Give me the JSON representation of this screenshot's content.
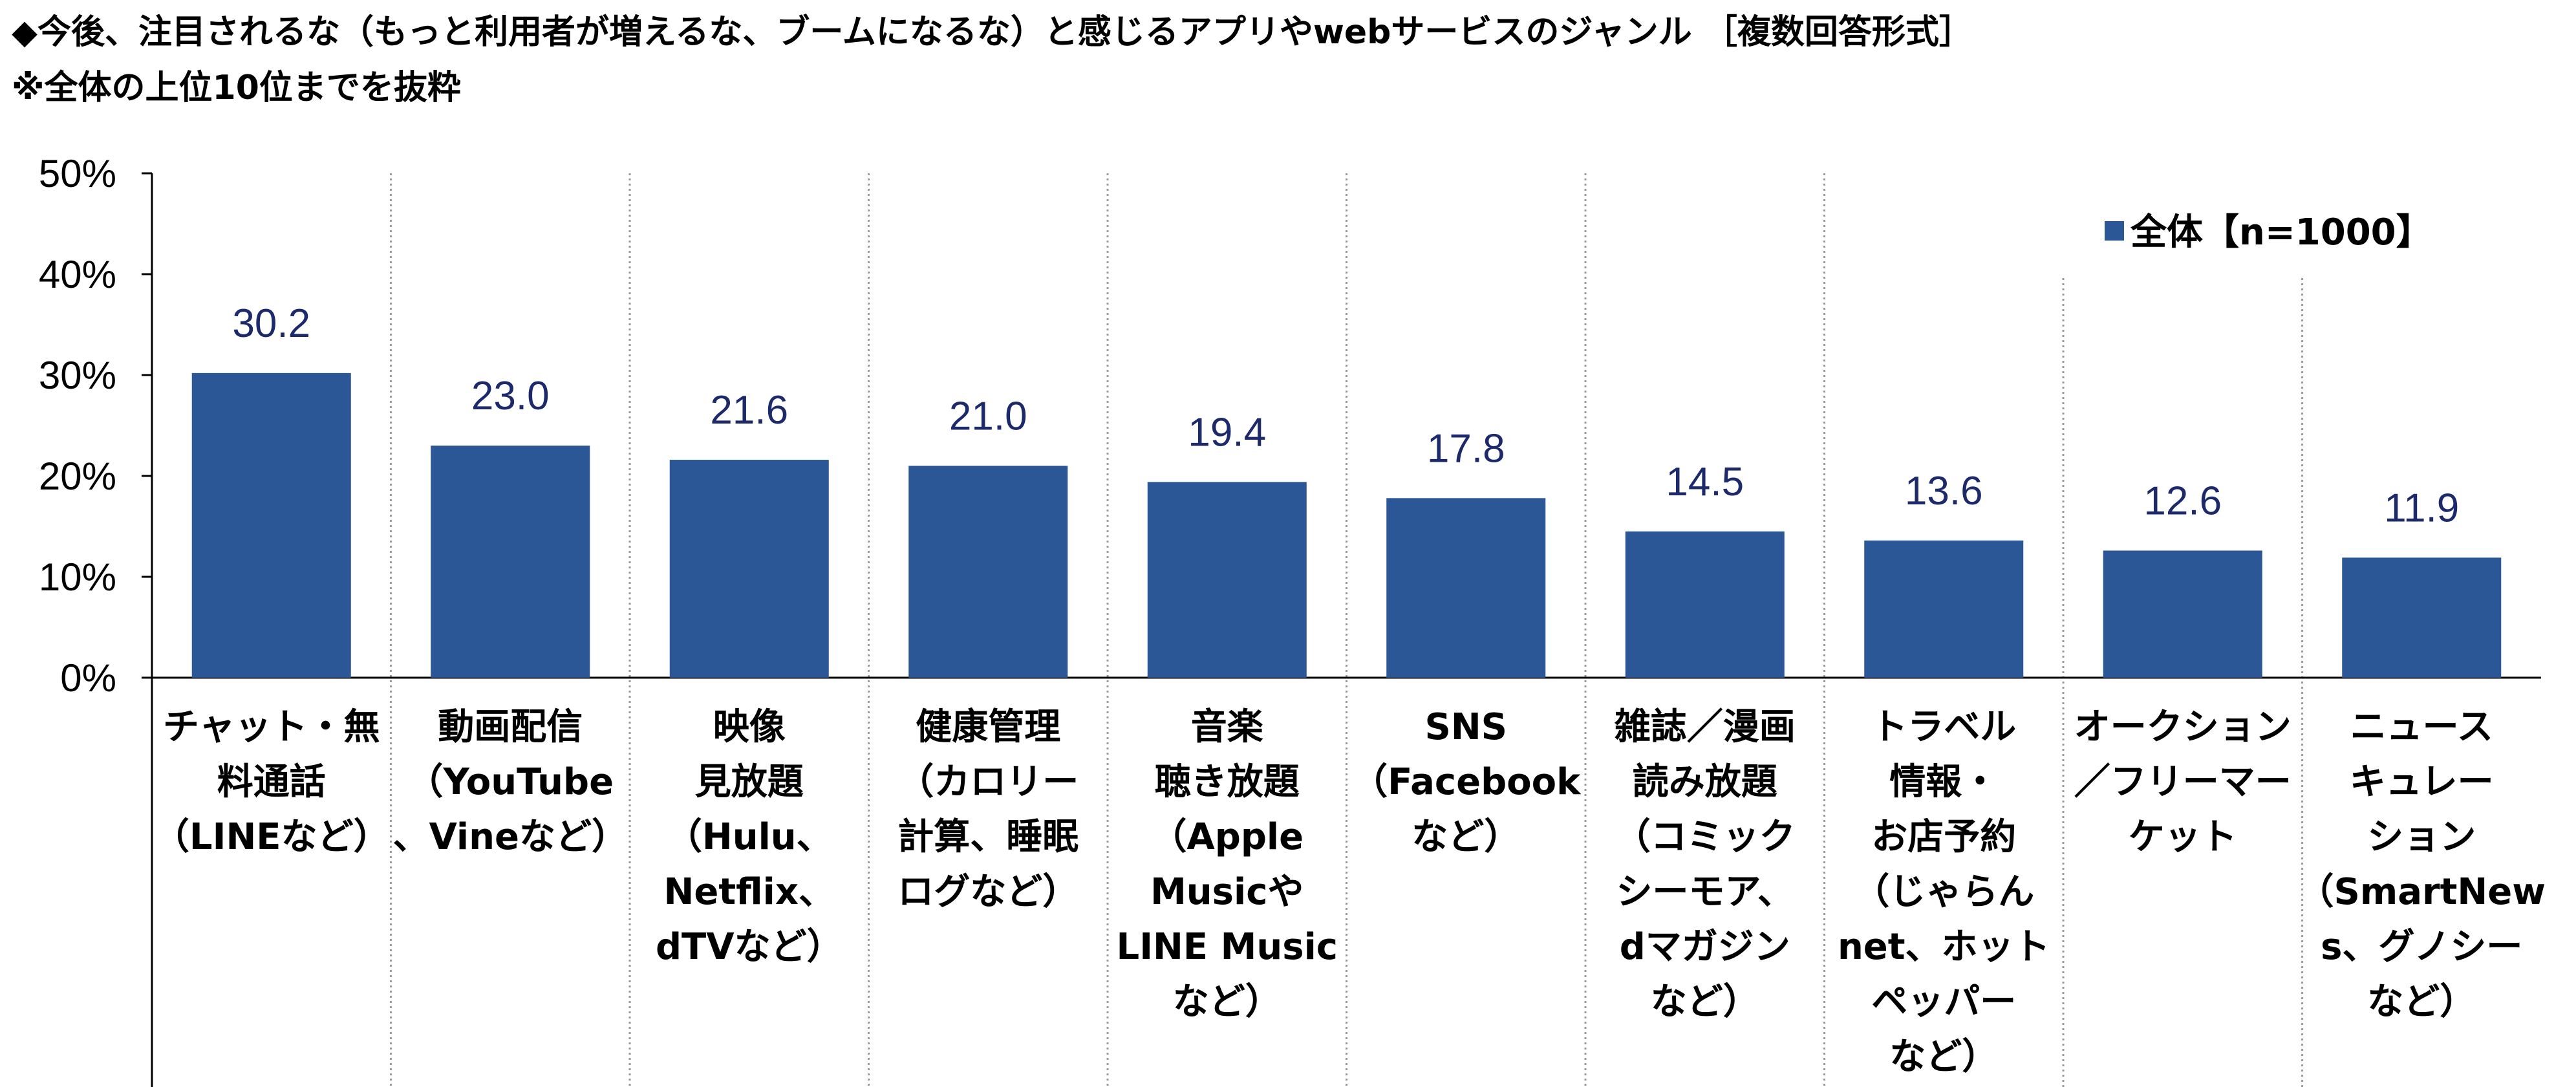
{
  "chart_data": {
    "type": "bar",
    "title": "◆今後、注目されるな（もっと利用者が増えるな、ブームになるな）と感じるアプリやwebサービスのジャンル ［複数回答形式］",
    "subtitle": "※全体の上位10位までを抜粋",
    "ylim": [
      0,
      50
    ],
    "yticks": [
      "0%",
      "10%",
      "20%",
      "30%",
      "40%",
      "50%"
    ],
    "legend": {
      "label": "全体【n=1000】",
      "position": "top-right"
    },
    "grid": false,
    "series": [
      {
        "name": "全体【n=1000】",
        "color": "#2b5797",
        "values": [
          30.2,
          23.0,
          21.6,
          21.0,
          19.4,
          17.8,
          14.5,
          13.6,
          12.6,
          11.9
        ]
      }
    ],
    "value_labels": [
      "30.2",
      "23.0",
      "21.6",
      "21.0",
      "19.4",
      "17.8",
      "14.5",
      "13.6",
      "12.6",
      "11.9"
    ],
    "categories": [
      [
        "チャット・無",
        "料通話",
        "（LINEなど）"
      ],
      [
        "動画配信",
        "（YouTube",
        "、Vineなど）"
      ],
      [
        "映像",
        "見放題",
        "（Hulu、",
        "Netflix、",
        "dTVなど）"
      ],
      [
        "健康管理",
        "（カロリー",
        "計算、睡眠",
        "ログなど）"
      ],
      [
        "音楽",
        "聴き放題",
        "（Apple",
        "Musicや",
        "LINE Music",
        "など）"
      ],
      [
        "SNS",
        "（Facebook",
        "など）"
      ],
      [
        "雑誌／漫画",
        "読み放題",
        "（コミック",
        "シーモア、",
        "dマガジン",
        "など）"
      ],
      [
        "トラベル",
        "情報・",
        "お店予約",
        "（じゃらん",
        "net、ホット",
        "ペッパー",
        "など）"
      ],
      [
        "オークション",
        "／フリーマー",
        "ケット"
      ],
      [
        "ニュース",
        "キュレー",
        "ション",
        "（SmartNew",
        "s、グノシー",
        "など）"
      ]
    ]
  }
}
